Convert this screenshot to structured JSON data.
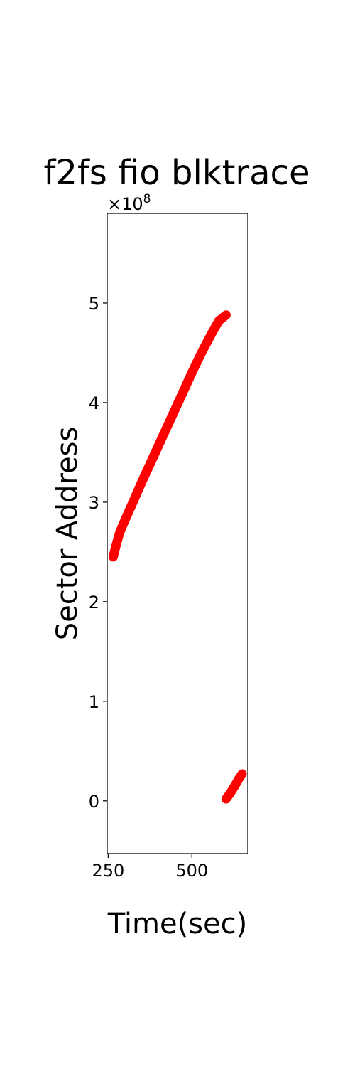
{
  "chart_data": {
    "type": "scatter",
    "title": "f2fs fio blktrace",
    "xlabel": "Time(sec)",
    "ylabel": "Sector Address",
    "y_multiplier_label": "×10",
    "y_multiplier_exponent": "8",
    "xlim": [
      247,
      667
    ],
    "ylim": [
      -0.53,
      5.9
    ],
    "xticks": [
      250,
      500
    ],
    "xtick_labels": [
      "250",
      "500"
    ],
    "yticks": [
      0,
      1,
      2,
      3,
      4,
      5
    ],
    "ytick_labels": [
      "0",
      "1",
      "2",
      "3",
      "4",
      "5"
    ],
    "grid": false,
    "series": [
      {
        "color": "#ff0000",
        "segments": [
          {
            "points": [
              [
                265,
                2.45
              ],
              [
                270,
                2.52
              ],
              [
                278,
                2.62
              ],
              [
                285,
                2.7
              ],
              [
                300,
                2.82
              ],
              [
                320,
                2.97
              ],
              [
                350,
                3.2
              ],
              [
                380,
                3.42
              ],
              [
                410,
                3.64
              ],
              [
                440,
                3.86
              ],
              [
                470,
                4.08
              ],
              [
                500,
                4.3
              ],
              [
                530,
                4.51
              ],
              [
                560,
                4.7
              ],
              [
                580,
                4.82
              ],
              [
                602,
                4.88
              ]
            ]
          },
          {
            "points": [
              [
                602,
                0.02
              ],
              [
                615,
                0.08
              ],
              [
                628,
                0.15
              ],
              [
                640,
                0.22
              ],
              [
                650,
                0.27
              ]
            ]
          }
        ]
      }
    ]
  }
}
